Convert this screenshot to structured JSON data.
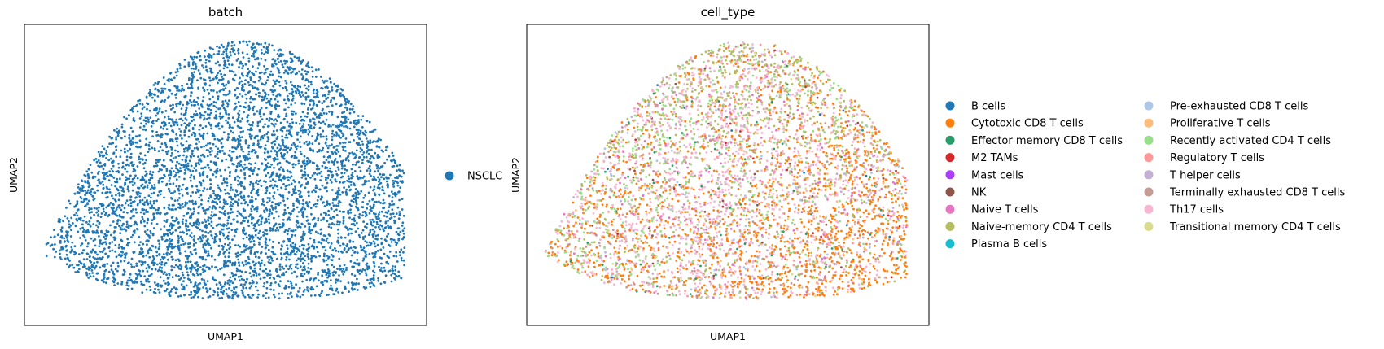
{
  "chart_data": [
    {
      "type": "scatter",
      "title": "batch",
      "xlabel": "UMAP1",
      "ylabel": "UMAP2",
      "ticks": "none",
      "grid": false,
      "legend_placement": "right",
      "legend": [
        {
          "name": "NSCLC",
          "color": "#1f77b4"
        }
      ],
      "point_count_approx": 5000,
      "description_of_shape": "dome"
    },
    {
      "type": "scatter",
      "title": "cell_type",
      "xlabel": "UMAP1",
      "ylabel": "UMAP2",
      "ticks": "none",
      "grid": false,
      "legend_placement": "right",
      "legend_columns": 2,
      "legend": [
        {
          "name": "B cells",
          "color": "#1f77b4"
        },
        {
          "name": "Cytotoxic CD8 T cells",
          "color": "#ff7f0e"
        },
        {
          "name": "Effector memory CD8 T cells",
          "color": "#279e68"
        },
        {
          "name": "M2 TAMs",
          "color": "#d62728"
        },
        {
          "name": "Mast cells",
          "color": "#aa40fc"
        },
        {
          "name": "NK",
          "color": "#8c564b"
        },
        {
          "name": "Naive T cells",
          "color": "#e377c2"
        },
        {
          "name": "Naive-memory CD4 T cells",
          "color": "#b5bd61"
        },
        {
          "name": "Plasma B cells",
          "color": "#17becf"
        },
        {
          "name": "Pre-exhausted CD8 T cells",
          "color": "#aec7e8"
        },
        {
          "name": "Proliferative T cells",
          "color": "#ffbb78"
        },
        {
          "name": "Recently activated CD4 T cells",
          "color": "#98df8a"
        },
        {
          "name": "Regulatory T cells",
          "color": "#ff9896"
        },
        {
          "name": "T helper cells",
          "color": "#c5b0d5"
        },
        {
          "name": "Terminally exhausted CD8 T cells",
          "color": "#c49c94"
        },
        {
          "name": "Th17 cells",
          "color": "#f7b6d2"
        },
        {
          "name": "Transitional memory CD4 T cells",
          "color": "#dbdb8d"
        }
      ]
    }
  ]
}
